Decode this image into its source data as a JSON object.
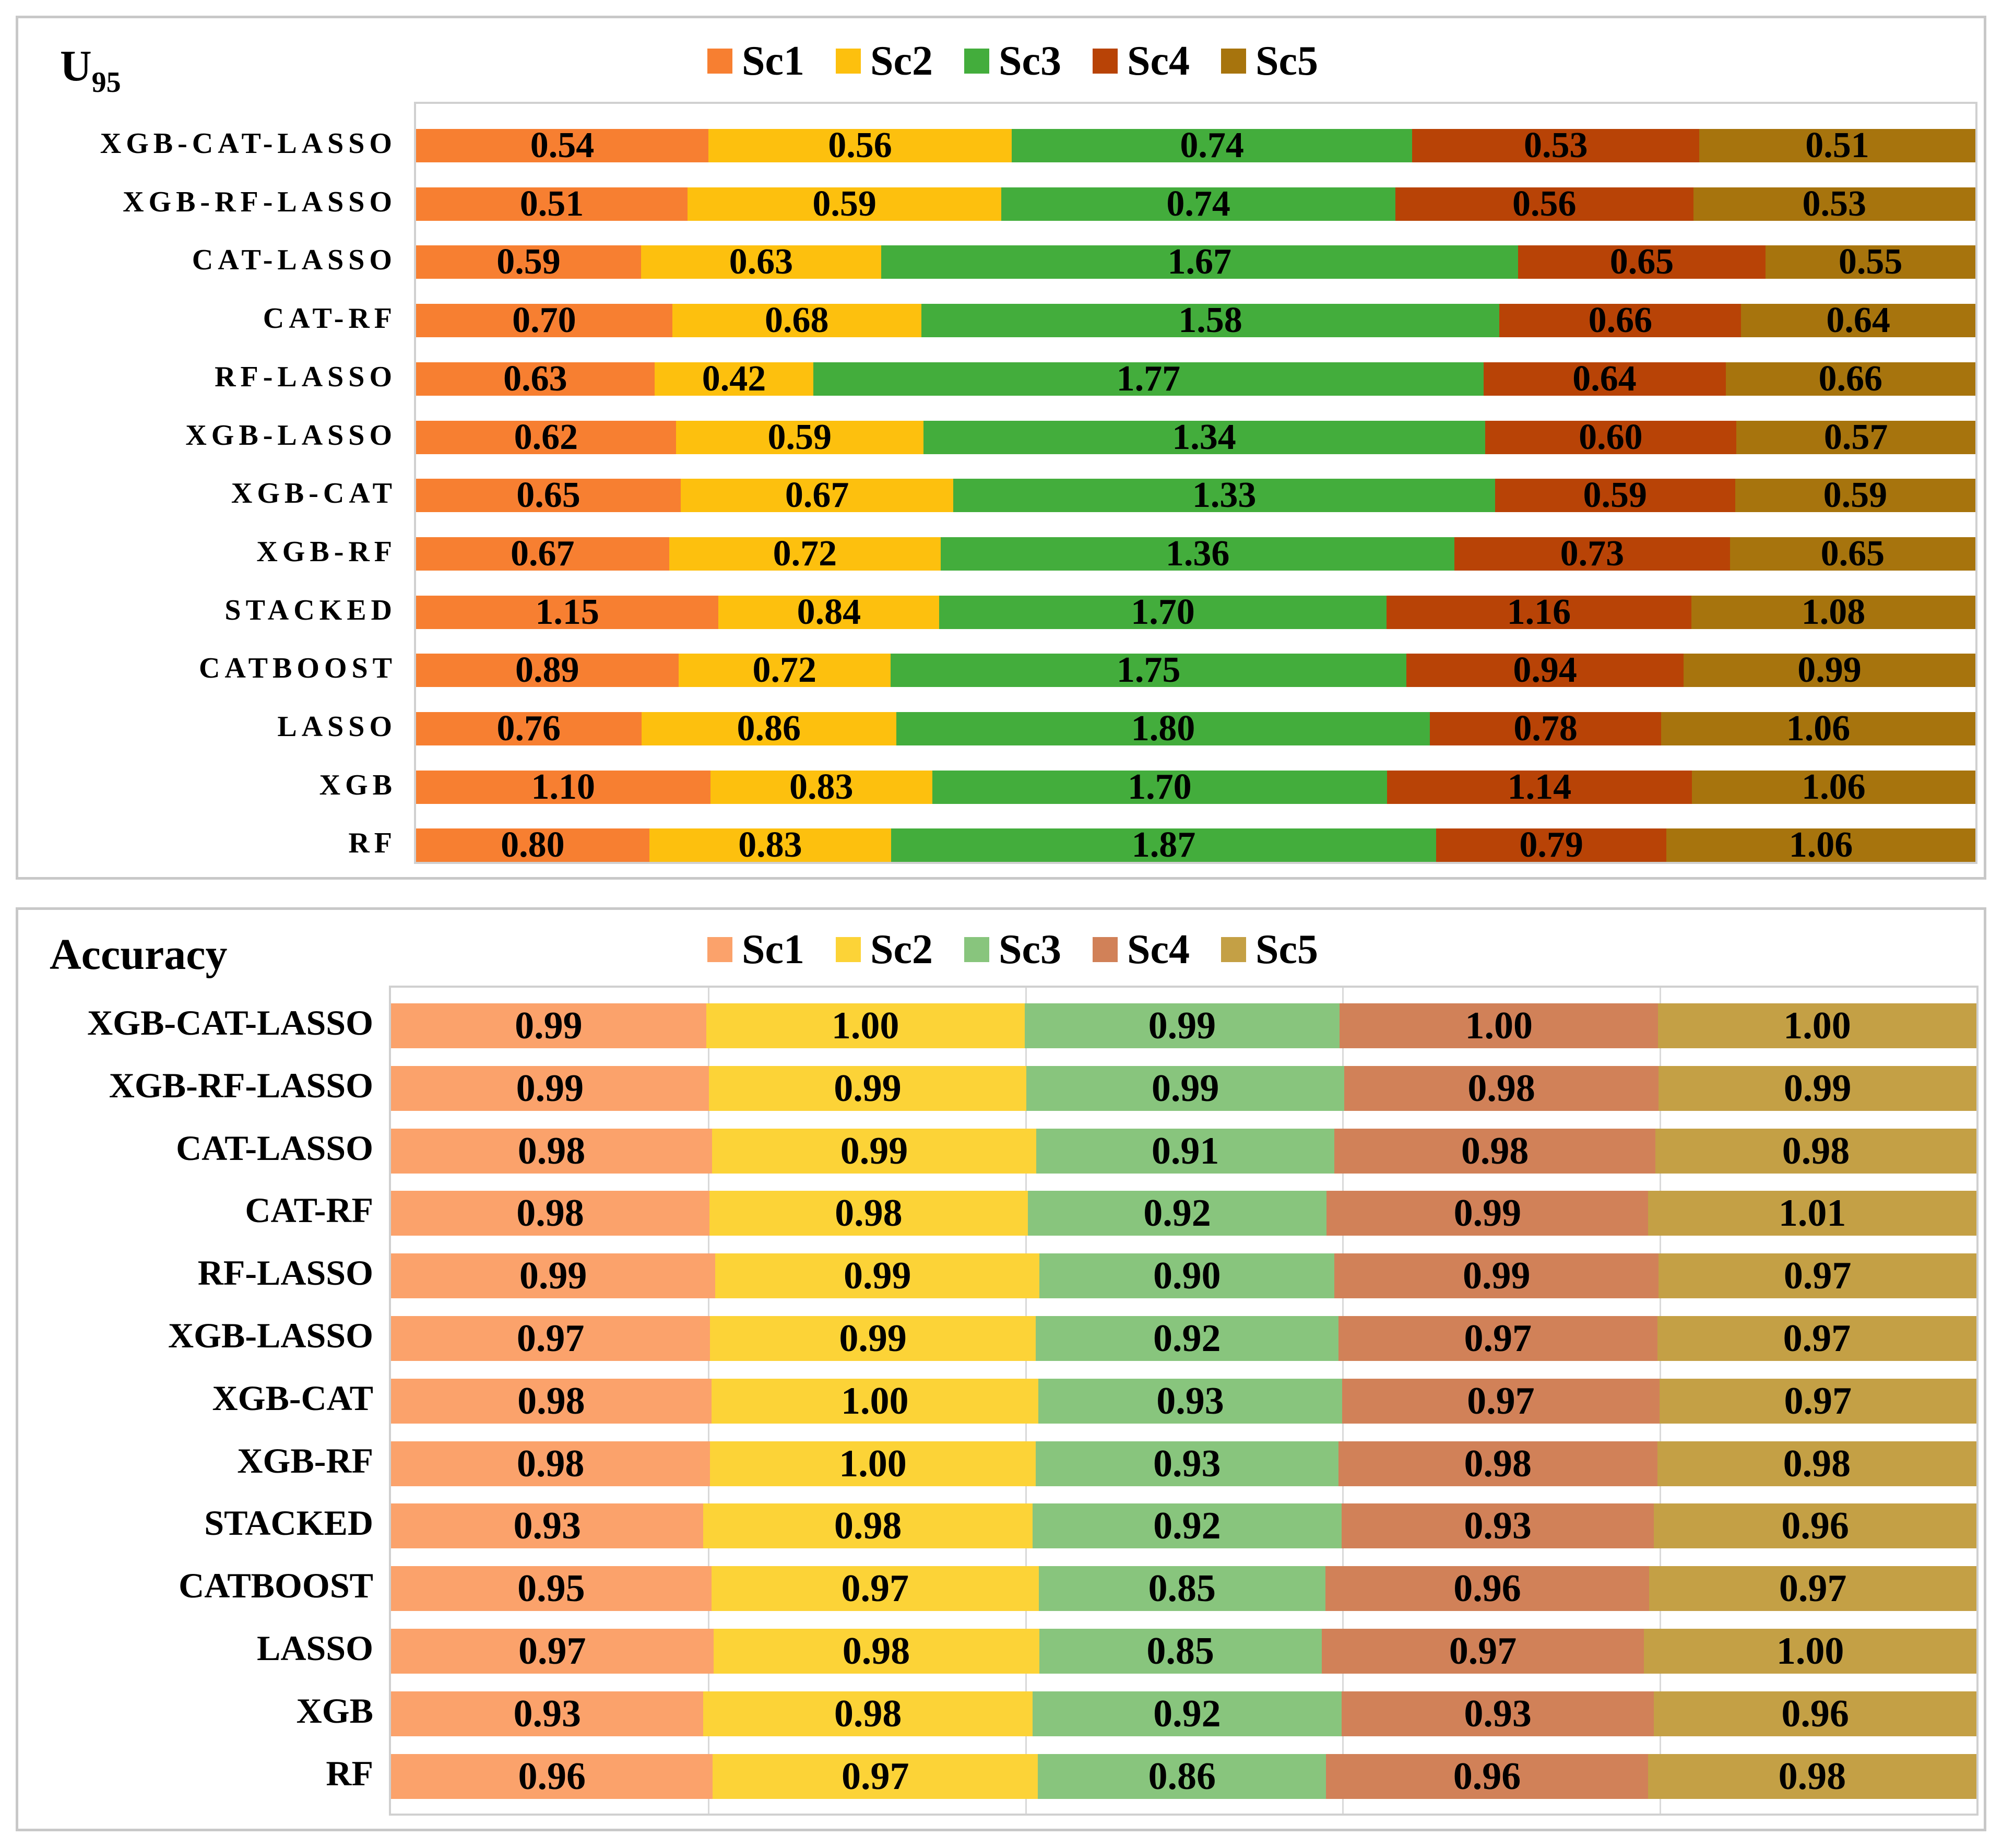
{
  "series": [
    "Sc1",
    "Sc2",
    "Sc3",
    "Sc4",
    "Sc5"
  ],
  "chart_data": [
    {
      "type": "bar",
      "stacked": true,
      "orientation": "horizontal",
      "title": "U95",
      "title_main": "U",
      "title_sub": "95",
      "legend_position": "top",
      "grid": false,
      "categories": [
        "XGB-CAT-LASSO",
        "XGB-RF-LASSO",
        "CAT-LASSO",
        "CAT-RF",
        "RF-LASSO",
        "XGB-LASSO",
        "XGB-CAT",
        "XGB-RF",
        "STACKED",
        "CATBOOST",
        "LASSO",
        "XGB",
        "RF"
      ],
      "colors": [
        "#f77f31",
        "#fdc00e",
        "#43ad3c",
        "#b84306",
        "#a7740d"
      ],
      "series": [
        {
          "name": "Sc1",
          "values": [
            0.54,
            0.51,
            0.59,
            0.7,
            0.63,
            0.62,
            0.65,
            0.67,
            1.15,
            0.89,
            0.76,
            1.1,
            0.8
          ],
          "labels": [
            "0.54",
            "0.51",
            "0.59",
            "0.70",
            "0.63",
            "0.62",
            "0.65",
            "0.67",
            "1.15",
            "0.89",
            "0.76",
            "1.10",
            "0.80"
          ]
        },
        {
          "name": "Sc2",
          "values": [
            0.56,
            0.59,
            0.63,
            0.68,
            0.42,
            0.59,
            0.67,
            0.72,
            0.84,
            0.72,
            0.86,
            0.83,
            0.83
          ],
          "labels": [
            "0.56",
            "0.59",
            "0.63",
            "0.68",
            "0.42",
            "0.59",
            "0.67",
            "0.72",
            "0.84",
            "0.72",
            "0.86",
            "0.83",
            "0.83"
          ]
        },
        {
          "name": "Sc3",
          "values": [
            0.74,
            0.74,
            1.67,
            1.58,
            1.77,
            1.34,
            1.33,
            1.36,
            1.7,
            1.75,
            1.8,
            1.7,
            1.87
          ],
          "labels": [
            "0.74",
            "0.74",
            "1.67",
            "1.58",
            "1.77",
            "1.34",
            "1.33",
            "1.36",
            "1.70",
            "1.75",
            "1.80",
            "1.70",
            "1.87"
          ]
        },
        {
          "name": "Sc4",
          "values": [
            0.53,
            0.56,
            0.65,
            0.66,
            0.64,
            0.6,
            0.59,
            0.73,
            1.16,
            0.94,
            0.78,
            1.14,
            0.79
          ],
          "labels": [
            "0.53",
            "0.56",
            "0.65",
            "0.66",
            "0.64",
            "0.60",
            "0.59",
            "0.73",
            "1.16",
            "0.94",
            "0.78",
            "1.14",
            "0.79"
          ]
        },
        {
          "name": "Sc5",
          "values": [
            0.51,
            0.53,
            0.55,
            0.64,
            0.66,
            0.57,
            0.59,
            0.65,
            1.08,
            0.99,
            1.06,
            1.06,
            1.06
          ],
          "labels": [
            "0.51",
            "0.53",
            "0.55",
            "0.64",
            "0.66",
            "0.57",
            "0.59",
            "0.65",
            "1.08",
            "0.99",
            "1.06",
            "1.06",
            "1.06"
          ]
        }
      ]
    },
    {
      "type": "bar",
      "stacked": true,
      "orientation": "horizontal",
      "title": "Accuracy",
      "legend_position": "top",
      "grid": true,
      "categories": [
        "XGB-CAT-LASSO",
        "XGB-RF-LASSO",
        "CAT-LASSO",
        "CAT-RF",
        "RF-LASSO",
        "XGB-LASSO",
        "XGB-CAT",
        "XGB-RF",
        "STACKED",
        "CATBOOST",
        "LASSO",
        "XGB",
        "RF"
      ],
      "colors": [
        "#fba26b",
        "#fcd337",
        "#88c57d",
        "#d18158",
        "#c4a045"
      ],
      "series": [
        {
          "name": "Sc1",
          "values": [
            0.99,
            0.99,
            0.98,
            0.98,
            0.99,
            0.97,
            0.98,
            0.98,
            0.93,
            0.95,
            0.97,
            0.93,
            0.96
          ],
          "labels": [
            "0.99",
            "0.99",
            "0.98",
            "0.98",
            "0.99",
            "0.97",
            "0.98",
            "0.98",
            "0.93",
            "0.95",
            "0.97",
            "0.93",
            "0.96"
          ]
        },
        {
          "name": "Sc2",
          "values": [
            1.0,
            0.99,
            0.99,
            0.98,
            0.99,
            0.99,
            1.0,
            1.0,
            0.98,
            0.97,
            0.98,
            0.98,
            0.97
          ],
          "labels": [
            "1.00",
            "0.99",
            "0.99",
            "0.98",
            "0.99",
            "0.99",
            "1.00",
            "1.00",
            "0.98",
            "0.97",
            "0.98",
            "0.98",
            "0.97"
          ]
        },
        {
          "name": "Sc3",
          "values": [
            0.99,
            0.99,
            0.91,
            0.92,
            0.9,
            0.92,
            0.93,
            0.93,
            0.92,
            0.85,
            0.85,
            0.92,
            0.86
          ],
          "labels": [
            "0.99",
            "0.99",
            "0.91",
            "0.92",
            "0.90",
            "0.92",
            "0.93",
            "0.93",
            "0.92",
            "0.85",
            "0.85",
            "0.92",
            "0.86"
          ]
        },
        {
          "name": "Sc4",
          "values": [
            1.0,
            0.98,
            0.98,
            0.99,
            0.99,
            0.97,
            0.97,
            0.98,
            0.93,
            0.96,
            0.97,
            0.93,
            0.96
          ],
          "labels": [
            "1.00",
            "0.98",
            "0.98",
            "0.99",
            "0.99",
            "0.97",
            "0.97",
            "0.98",
            "0.93",
            "0.96",
            "0.97",
            "0.93",
            "0.96"
          ]
        },
        {
          "name": "Sc5",
          "values": [
            1.0,
            0.99,
            0.98,
            1.01,
            0.97,
            0.97,
            0.97,
            0.98,
            0.96,
            0.97,
            1.0,
            0.96,
            0.98
          ],
          "labels": [
            "1.00",
            "0.99",
            "0.98",
            "1.01",
            "0.97",
            "0.97",
            "0.97",
            "0.98",
            "0.96",
            "0.97",
            "1.00",
            "0.96",
            "0.98"
          ]
        }
      ]
    }
  ]
}
